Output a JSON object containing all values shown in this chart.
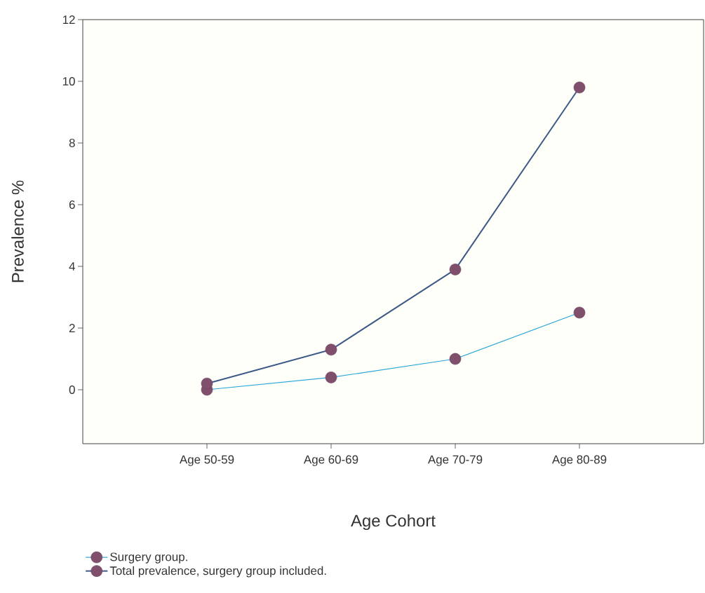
{
  "chart_data": {
    "type": "line",
    "xlabel": "Age Cohort",
    "ylabel": "Prevalence %",
    "categories": [
      "Age 50-59",
      "Age 60-69",
      "Age 70-79",
      "Age 80-89"
    ],
    "series": [
      {
        "name": "Surgery group.",
        "color": "#2aa6d8",
        "values": [
          0,
          0.4,
          1.0,
          2.5
        ]
      },
      {
        "name": "Total prevalence, surgery group included.",
        "color": "#3d5a87",
        "values": [
          0.2,
          1.3,
          3.9,
          9.8
        ]
      }
    ],
    "ylim": [
      -1.75,
      12
    ],
    "yticks": [
      0,
      2,
      4,
      6,
      8,
      10,
      12
    ],
    "grid": false,
    "legend": "bottom left",
    "marker": "circle",
    "line_style": "solid"
  }
}
